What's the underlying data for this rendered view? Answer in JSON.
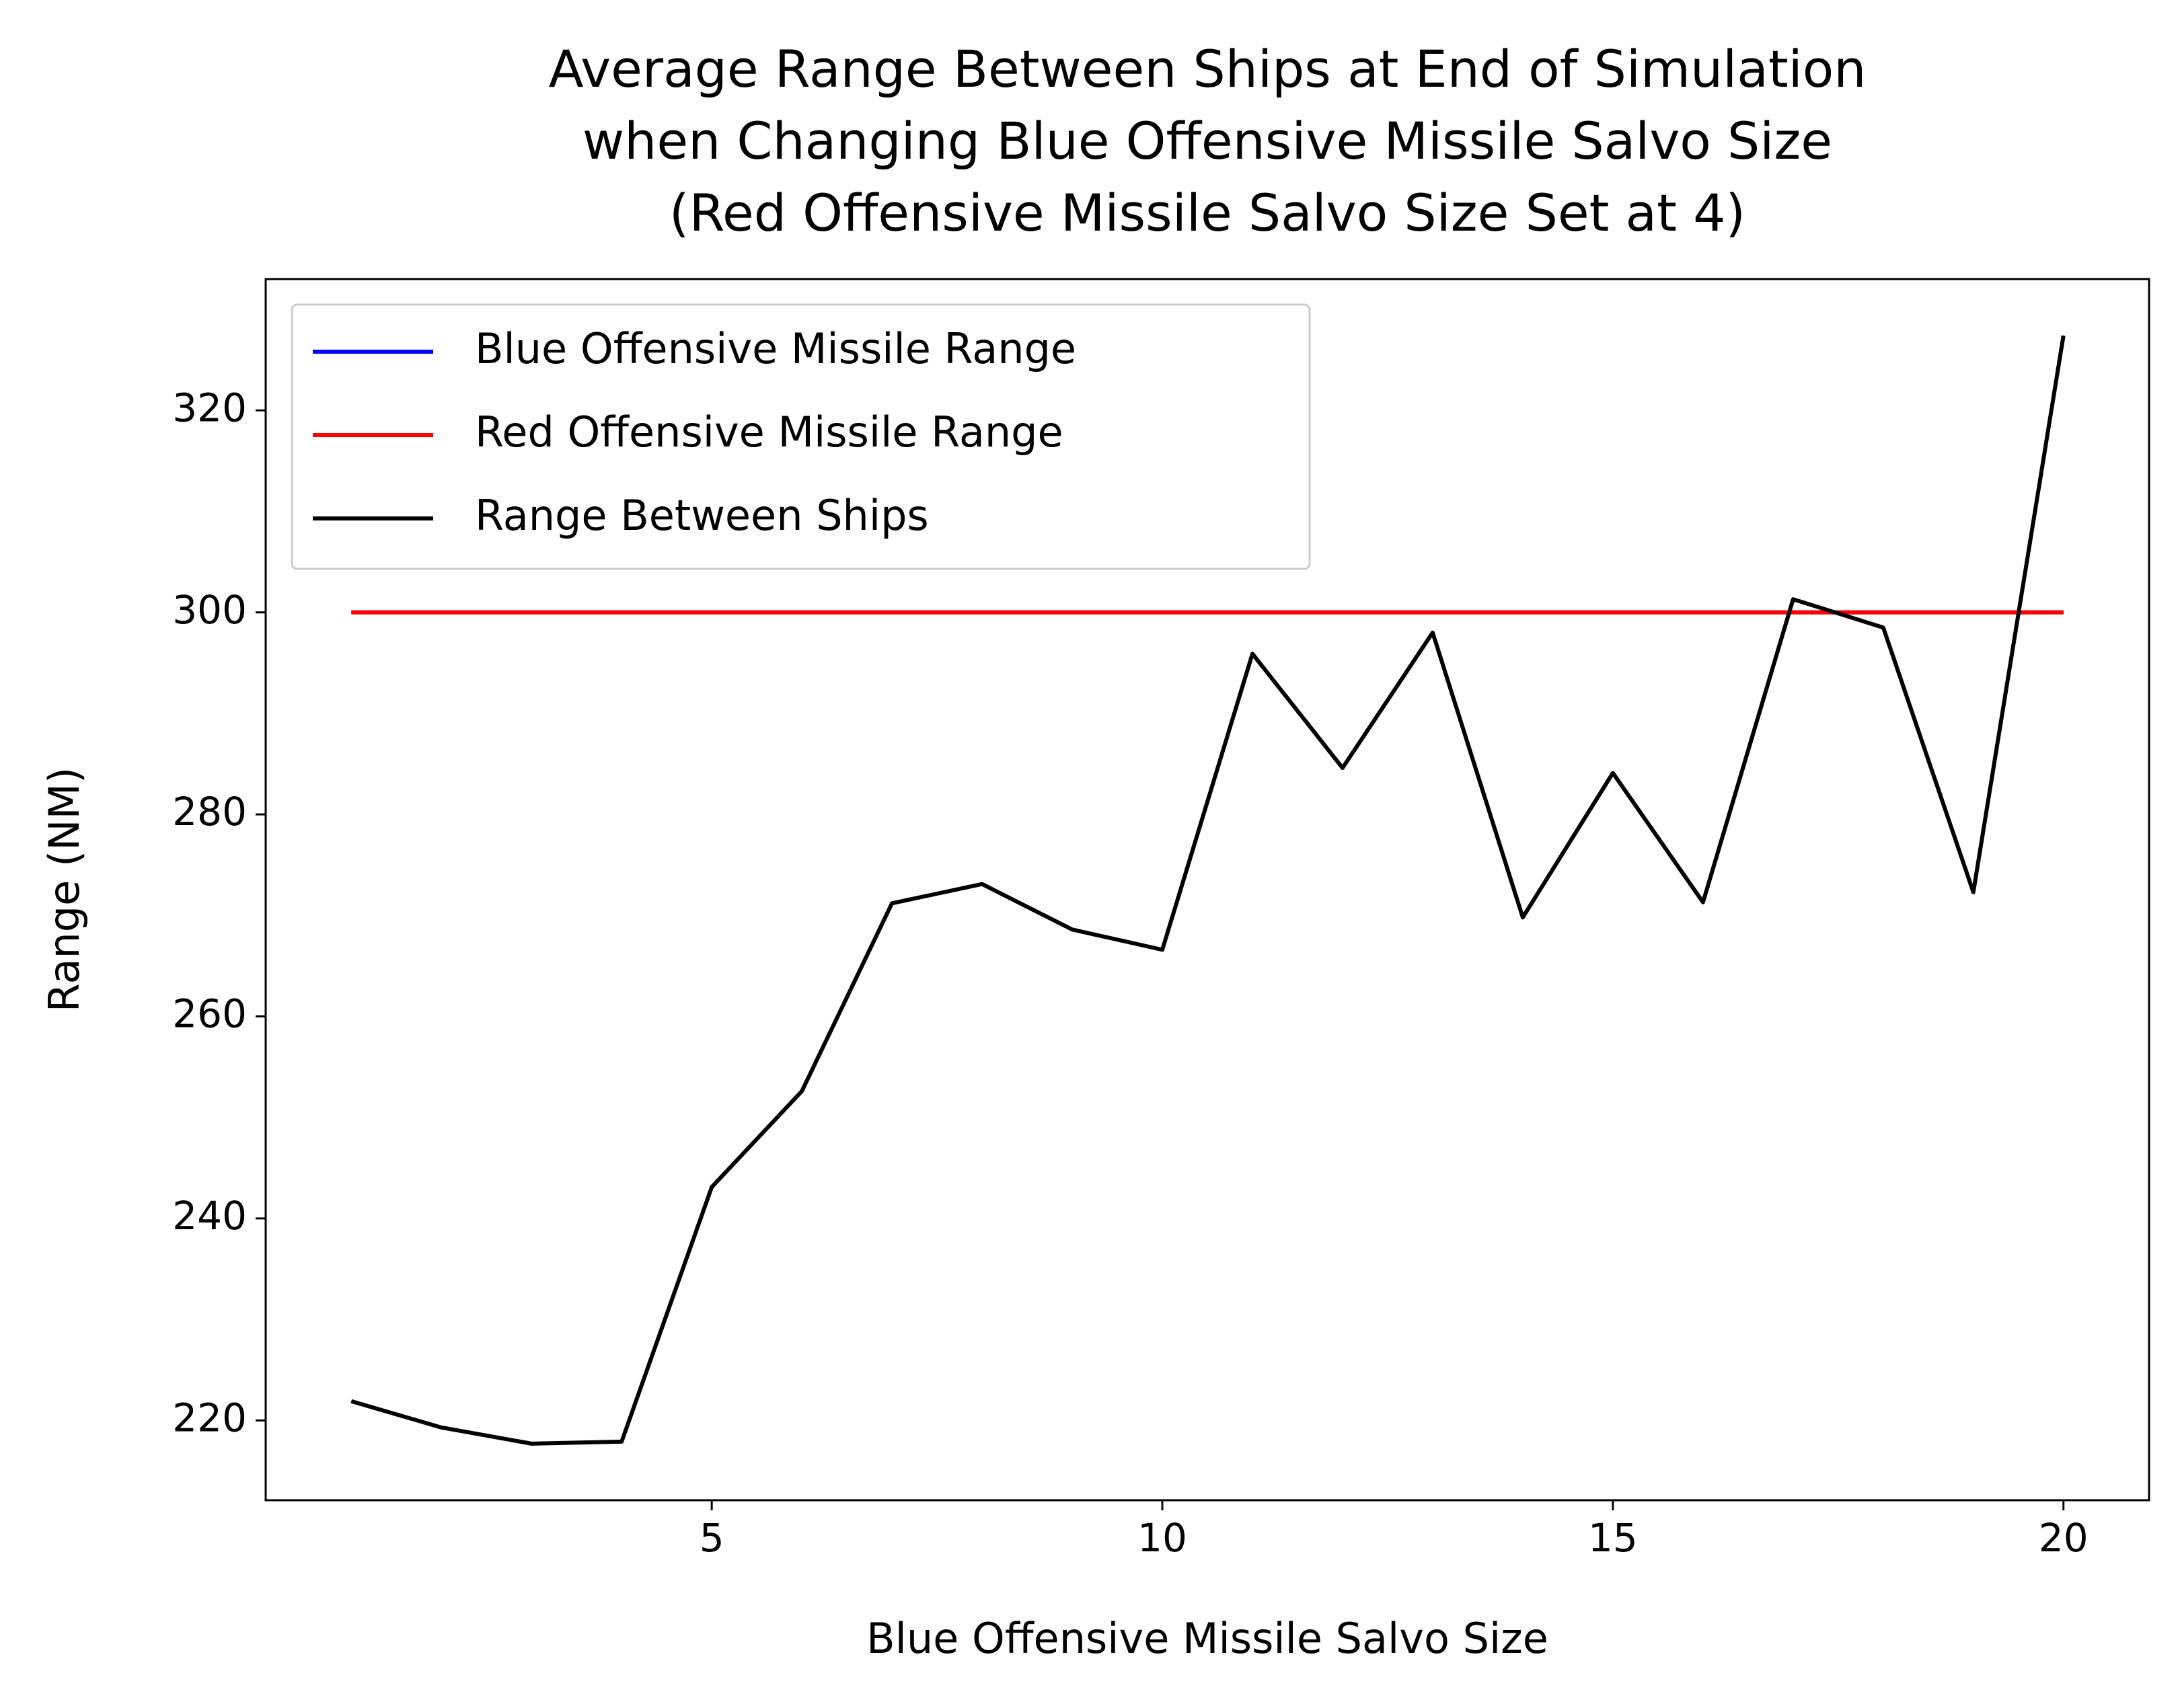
{
  "chart_data": {
    "type": "line",
    "title": [
      "Average Range Between Ships at End of Simulation",
      "when Changing Blue Offensive Missile Salvo Size",
      "(Red Offensive Missile Salvo Size Set at 4)"
    ],
    "xlabel": "Blue Offensive Missile Salvo Size",
    "ylabel": "Range (NM)",
    "x": [
      1,
      2,
      3,
      4,
      5,
      6,
      7,
      8,
      9,
      10,
      11,
      12,
      13,
      14,
      15,
      16,
      17,
      18,
      19,
      20
    ],
    "series": [
      {
        "name": "Blue Offensive Missile Range",
        "color": "#0000ff",
        "values": [
          300,
          300,
          300,
          300,
          300,
          300,
          300,
          300,
          300,
          300,
          300,
          300,
          300,
          300,
          300,
          300,
          300,
          300,
          300,
          300
        ]
      },
      {
        "name": "Red Offensive Missile Range",
        "color": "#ff0000",
        "values": [
          300,
          300,
          300,
          300,
          300,
          300,
          300,
          300,
          300,
          300,
          300,
          300,
          300,
          300,
          300,
          300,
          300,
          300,
          300,
          300
        ]
      },
      {
        "name": "Range Between Ships",
        "color": "#000000",
        "values": [
          221.9,
          219.3,
          217.7,
          217.9,
          243.1,
          252.6,
          271.2,
          273.1,
          268.6,
          266.6,
          295.9,
          284.6,
          298.0,
          269.8,
          284.1,
          271.3,
          301.3,
          298.5,
          272.3,
          327.4
        ]
      }
    ],
    "xlim": [
      0.05,
      20.95
    ],
    "xticks": [
      5,
      10,
      15,
      20
    ],
    "ylim": [
      212.1,
      333.0
    ],
    "yticks": [
      220,
      240,
      260,
      280,
      300,
      320
    ],
    "legend": "upper left",
    "grid": false
  }
}
